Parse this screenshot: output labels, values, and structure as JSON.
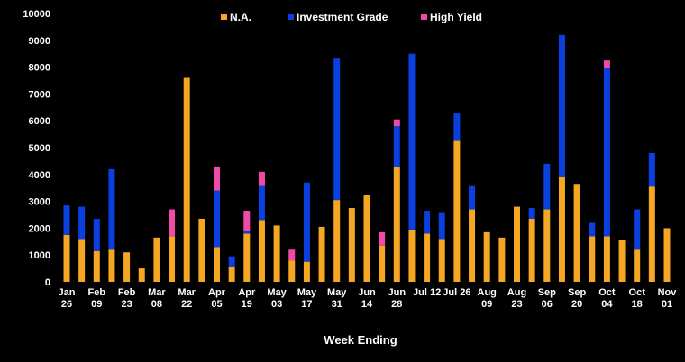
{
  "chart_data": {
    "type": "bar",
    "stacked": true,
    "xlabel": "Week Ending",
    "ylabel": "",
    "ylim": [
      0,
      10000
    ],
    "yticks": [
      0,
      1000,
      2000,
      3000,
      4000,
      5000,
      6000,
      7000,
      8000,
      9000,
      10000
    ],
    "grid": false,
    "legend": "top-center",
    "colors": {
      "background": "#000000",
      "N.A.": "#f5a623",
      "Investment Grade": "#0a3fe0",
      "High Yield": "#f04aa8"
    },
    "series": [
      {
        "name": "N.A.",
        "values": [
          1750,
          1600,
          1150,
          1200,
          1100,
          500,
          1650,
          1700,
          7600,
          2350,
          1300,
          550,
          1800,
          2300,
          2100,
          800,
          750,
          2050,
          3050,
          2750,
          3250,
          1350,
          4300,
          1950,
          1800,
          1600,
          5250,
          2700,
          1850,
          1650,
          2800,
          2350,
          2700,
          3900,
          3650,
          1700,
          1700,
          1550,
          1200,
          3550,
          2000
        ]
      },
      {
        "name": "Investment Grade",
        "values": [
          1100,
          1200,
          1200,
          3000,
          0,
          0,
          0,
          0,
          0,
          0,
          2100,
          400,
          100,
          1300,
          0,
          0,
          2950,
          0,
          5300,
          0,
          0,
          0,
          1500,
          6550,
          850,
          1000,
          1050,
          900,
          0,
          0,
          0,
          400,
          1700,
          5300,
          0,
          500,
          6250,
          0,
          1500,
          1250,
          0
        ]
      },
      {
        "name": "High Yield",
        "values": [
          0,
          0,
          0,
          0,
          0,
          0,
          0,
          1000,
          0,
          0,
          900,
          0,
          750,
          500,
          0,
          400,
          0,
          0,
          0,
          0,
          0,
          500,
          250,
          0,
          0,
          0,
          0,
          0,
          0,
          0,
          0,
          0,
          0,
          0,
          0,
          0,
          300,
          0,
          0,
          0,
          0
        ]
      }
    ],
    "x_tick_labels": [
      {
        "top": "Jan",
        "bottom": "26",
        "index": 0
      },
      {
        "top": "Feb",
        "bottom": "09",
        "index": 2
      },
      {
        "top": "Feb",
        "bottom": "23",
        "index": 4
      },
      {
        "top": "Mar",
        "bottom": "08",
        "index": 6
      },
      {
        "top": "Mar",
        "bottom": "22",
        "index": 8
      },
      {
        "top": "Apr",
        "bottom": "05",
        "index": 10
      },
      {
        "top": "Apr",
        "bottom": "19",
        "index": 12
      },
      {
        "top": "May",
        "bottom": "03",
        "index": 14
      },
      {
        "top": "May",
        "bottom": "17",
        "index": 16
      },
      {
        "top": "May",
        "bottom": "31",
        "index": 18
      },
      {
        "top": "Jun",
        "bottom": "14",
        "index": 20
      },
      {
        "top": "Jun",
        "bottom": "28",
        "index": 22
      },
      {
        "top": "Jul 12",
        "bottom": "",
        "index": 24
      },
      {
        "top": "Jul 26",
        "bottom": "",
        "index": 26
      },
      {
        "top": "Aug",
        "bottom": "09",
        "index": 28
      },
      {
        "top": "Aug",
        "bottom": "23",
        "index": 30
      },
      {
        "top": "Sep",
        "bottom": "06",
        "index": 32
      },
      {
        "top": "Sep",
        "bottom": "20",
        "index": 34
      },
      {
        "top": "Oct",
        "bottom": "04",
        "index": 36
      },
      {
        "top": "Oct",
        "bottom": "18",
        "index": 38
      },
      {
        "top": "Nov",
        "bottom": "01",
        "index": 40
      }
    ]
  }
}
